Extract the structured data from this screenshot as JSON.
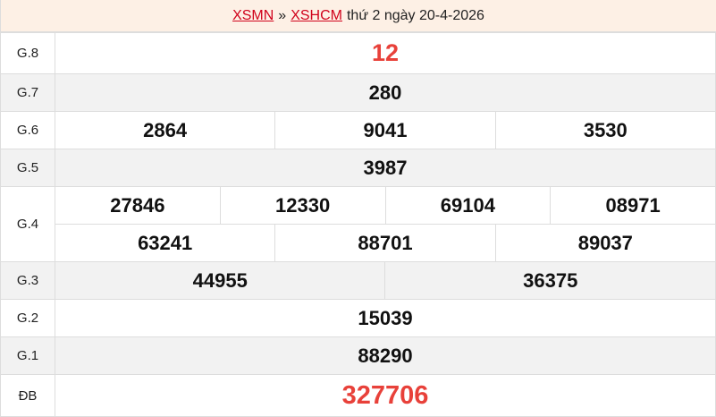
{
  "header": {
    "link1": "XSMN",
    "separator": "»",
    "link2": "XSHCM",
    "date_text": "thứ 2 ngày 20-4-2026"
  },
  "prizes": {
    "g8": {
      "label": "G.8",
      "values": [
        "12"
      ]
    },
    "g7": {
      "label": "G.7",
      "values": [
        "280"
      ]
    },
    "g6": {
      "label": "G.6",
      "values": [
        "2864",
        "9041",
        "3530"
      ]
    },
    "g5": {
      "label": "G.5",
      "values": [
        "3987"
      ]
    },
    "g4": {
      "label": "G.4",
      "values": [
        "27846",
        "12330",
        "69104",
        "08971",
        "63241",
        "88701",
        "89037"
      ]
    },
    "g3": {
      "label": "G.3",
      "values": [
        "44955",
        "36375"
      ]
    },
    "g2": {
      "label": "G.2",
      "values": [
        "15039"
      ]
    },
    "g1": {
      "label": "G.1",
      "values": [
        "88290"
      ]
    },
    "db": {
      "label": "ĐB",
      "values": [
        "327706"
      ]
    }
  },
  "colors": {
    "accent": "#e8413a",
    "link": "#d0021b",
    "header_bg": "#fdf0e5",
    "alt_row": "#f2f2f2"
  }
}
